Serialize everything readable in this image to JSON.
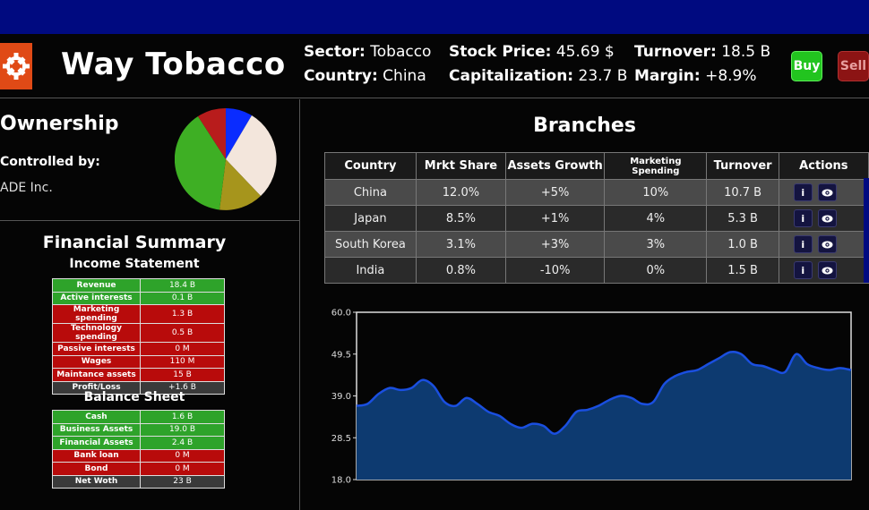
{
  "header": {
    "company_name": "Way Tobacco",
    "sector_label": "Sector:",
    "sector_value": "Tobacco",
    "country_label": "Country:",
    "country_value": "China",
    "price_label": "Stock Price:",
    "price_value": "45.69 $",
    "cap_label": "Capitalization:",
    "cap_value": "23.7 B",
    "turnover_label": "Turnover:",
    "turnover_value": "18.5 B",
    "margin_label": "Margin:",
    "margin_value": "+8.9%",
    "buy_label": "Buy",
    "sell_label": "Sell",
    "logo_icon": "cog-icon",
    "logo_color": "#e04a16"
  },
  "ownership": {
    "title": "Ownership",
    "controlled_label": "Controlled by:",
    "controlled_value": "ADE Inc.",
    "pie_colors": [
      "#0a2cff",
      "#f3e6dc",
      "#a6951c",
      "#3eaf24",
      "#b81c1c"
    ]
  },
  "financial": {
    "title": "Financial Summary",
    "income_title": "Income Statement",
    "income": [
      {
        "label": "Revenue",
        "value": "18.4 B",
        "color": "g"
      },
      {
        "label": "Active interests",
        "value": "0.1 B",
        "color": "g"
      },
      {
        "label": "Marketing spending",
        "value": "1.3 B",
        "color": "r"
      },
      {
        "label": "Technology spending",
        "value": "0.5 B",
        "color": "r"
      },
      {
        "label": "Passive interests",
        "value": "0 M",
        "color": "r"
      },
      {
        "label": "Wages",
        "value": "110 M",
        "color": "r"
      },
      {
        "label": "Maintance assets",
        "value": "15 B",
        "color": "r"
      },
      {
        "label": "Profit/Loss",
        "value": "+1.6 B",
        "color": "k"
      }
    ],
    "balance_title": "Balance Sheet",
    "balance": [
      {
        "label": "Cash",
        "value": "1.6 B",
        "color": "g"
      },
      {
        "label": "Business Assets",
        "value": "19.0 B",
        "color": "g"
      },
      {
        "label": "Financial Assets",
        "value": "2.4 B",
        "color": "g"
      },
      {
        "label": "Bank loan",
        "value": "0 M",
        "color": "r"
      },
      {
        "label": "Bond",
        "value": "0 M",
        "color": "r"
      },
      {
        "label": "Net Woth",
        "value": "23 B",
        "color": "k"
      }
    ]
  },
  "branches": {
    "title": "Branches",
    "columns": [
      "Country",
      "Mrkt Share",
      "Assets Growth",
      "Marketing Spending",
      "Turnover",
      "Actions"
    ],
    "rows": [
      {
        "country": "China",
        "share": "12.0%",
        "growth": "+5%",
        "marketing": "10%",
        "turnover": "10.7 B"
      },
      {
        "country": "Japan",
        "share": "8.5%",
        "growth": "+1%",
        "marketing": "4%",
        "turnover": "5.3 B"
      },
      {
        "country": "South Korea",
        "share": "3.1%",
        "growth": "+3%",
        "marketing": "3%",
        "turnover": "1.0 B"
      },
      {
        "country": "India",
        "share": "0.8%",
        "growth": "-10%",
        "marketing": "0%",
        "turnover": "1.5 B"
      }
    ],
    "info_label": "i",
    "info_icon": "info-icon",
    "view_icon": "eye-icon"
  },
  "chart_data": {
    "type": "area",
    "yticks": [
      "60.0",
      "49.5",
      "39.0",
      "28.5",
      "18.0"
    ],
    "ylim": [
      18.0,
      60.0
    ],
    "values": [
      36.5,
      37.0,
      39.5,
      41.0,
      40.5,
      41.0,
      43.0,
      41.5,
      37.5,
      36.5,
      38.5,
      37.0,
      35.0,
      34.0,
      32.0,
      31.0,
      32.0,
      31.5,
      29.5,
      31.5,
      35.0,
      35.5,
      36.5,
      38.0,
      39.0,
      38.5,
      37.0,
      37.5,
      42.0,
      44.0,
      45.0,
      45.5,
      47.0,
      48.5,
      50.0,
      49.5,
      47.0,
      46.5,
      45.5,
      45.0,
      49.5,
      47.0,
      46.0,
      45.5,
      46.0,
      45.5
    ],
    "line_color": "#1a4fe0",
    "fill_color": "#0d3a70"
  }
}
